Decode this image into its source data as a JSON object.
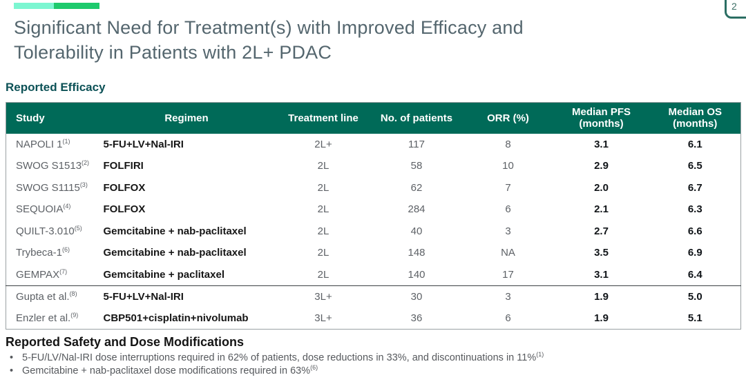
{
  "page": {
    "badge_number": "2",
    "title_line1": "Significant Need for Treatment(s) with Improved Efficacy and",
    "title_line2": "Tolerability in Patients with 2L+ PDAC"
  },
  "colors": {
    "accent_aqua": "#7CF6D1",
    "accent_green": "#1DCA6D",
    "table_header_bg": "#006A58",
    "section_teal": "#0C5156"
  },
  "efficacy": {
    "section_title": "Reported Efficacy",
    "columns": [
      "Study",
      "Regimen",
      "Treatment line",
      "No. of patients",
      "ORR (%)",
      "Median PFS (months)",
      "Median OS (months)"
    ],
    "rows": [
      {
        "study": "NAPOLI 1",
        "ref": "(1)",
        "regimen": "5-FU+LV+Nal-IRI",
        "line": "2L+",
        "patients": "117",
        "orr": "8",
        "pfs": "3.1",
        "os": "6.1",
        "group_start": false
      },
      {
        "study": "SWOG S1513",
        "ref": "(2)",
        "regimen": "FOLFIRI",
        "line": "2L",
        "patients": "58",
        "orr": "10",
        "pfs": "2.9",
        "os": "6.5",
        "group_start": false
      },
      {
        "study": "SWOG S1115",
        "ref": "(3)",
        "regimen": "FOLFOX",
        "line": "2L",
        "patients": "62",
        "orr": "7",
        "pfs": "2.0",
        "os": "6.7",
        "group_start": false
      },
      {
        "study": "SEQUOIA",
        "ref": "(4)",
        "regimen": "FOLFOX",
        "line": "2L",
        "patients": "284",
        "orr": "6",
        "pfs": "2.1",
        "os": "6.3",
        "group_start": false
      },
      {
        "study": "QUILT-3.010",
        "ref": "(5)",
        "regimen": "Gemcitabine + nab-paclitaxel",
        "line": "2L",
        "patients": "40",
        "orr": "3",
        "pfs": "2.7",
        "os": "6.6",
        "group_start": false
      },
      {
        "study": "Trybeca-1",
        "ref": "(6)",
        "regimen": "Gemcitabine + nab-paclitaxel",
        "line": "2L",
        "patients": "148",
        "orr": "NA",
        "pfs": "3.5",
        "os": "6.9",
        "group_start": false
      },
      {
        "study": "GEMPAX",
        "ref": "(7)",
        "regimen": "Gemcitabine + paclitaxel",
        "line": "2L",
        "patients": "140",
        "orr": "17",
        "pfs": "3.1",
        "os": "6.4",
        "group_start": false
      },
      {
        "study": "Gupta et al.",
        "ref": "(8)",
        "regimen": "5-FU+LV+Nal-IRI",
        "line": "3L+",
        "patients": "30",
        "orr": "3",
        "pfs": "1.9",
        "os": "5.0",
        "group_start": true
      },
      {
        "study": "Enzler et al.",
        "ref": "(9)",
        "regimen": "CBP501+cisplatin+nivolumab",
        "line": "3L+",
        "patients": "36",
        "orr": "6",
        "pfs": "1.9",
        "os": "5.1",
        "group_start": false
      }
    ]
  },
  "safety": {
    "section_title": "Reported Safety and Dose Modifications",
    "bullet_glyph": "•",
    "bullets": [
      {
        "text": "5-FU/LV/Nal-IRI dose interruptions required in 62% of patients, dose reductions in 33%, and discontinuations in 11%",
        "ref": "(1)"
      },
      {
        "text": "Gemcitabine + nab-paclitaxel dose modifications required in 63%",
        "ref": "(6)"
      }
    ]
  }
}
